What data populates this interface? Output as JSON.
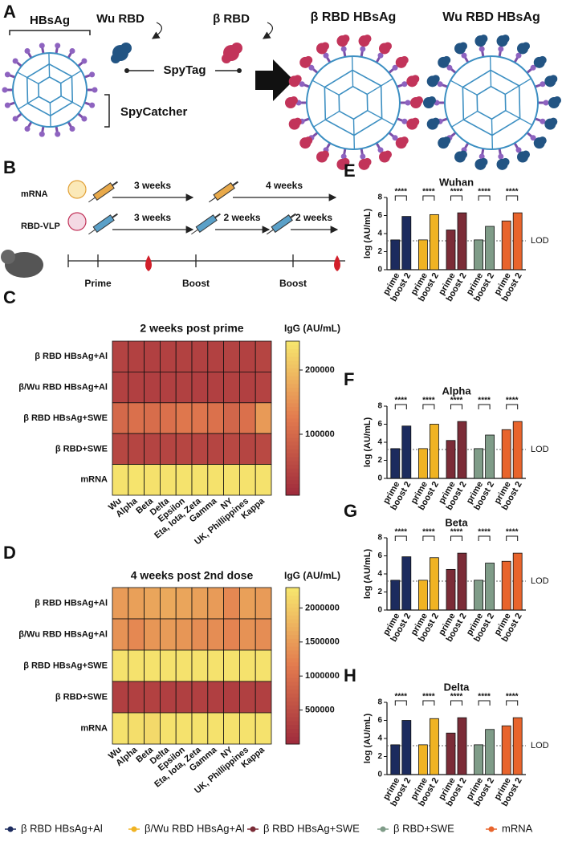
{
  "figure": {
    "panel_a": {
      "letter": "A",
      "labels": {
        "hbsag": "HBsAg",
        "wu_rbd": "Wu RBD",
        "beta_rbd": "β RBD",
        "spytag": "SpyTag",
        "spycatcher": "SpyCatcher",
        "beta_vlp": "β RBD HBsAg",
        "wu_vlp": "Wu RBD HBsAg"
      }
    },
    "panel_b": {
      "letter": "B",
      "rows": [
        {
          "label": "mRNA",
          "intervals": [
            "3 weeks",
            "4 weeks"
          ]
        },
        {
          "label": "RBD-VLP",
          "intervals": [
            "3 weeks",
            "2 weeks",
            "2 weeks"
          ]
        }
      ],
      "timepoints": [
        "Prime",
        "Boost",
        "Boost"
      ]
    }
  },
  "legend": [
    {
      "name": "β RBD HBsAg+Al",
      "color": "#1c2b5e"
    },
    {
      "name": "β/Wu RBD HBsAg+Al",
      "color": "#f0b323"
    },
    {
      "name": "β RBD HBsAg+SWE",
      "color": "#7b2c37"
    },
    {
      "name": "β RBD+SWE",
      "color": "#7f9c88"
    },
    {
      "name": "mRNA",
      "color": "#e8642c"
    }
  ],
  "chart_data": [
    {
      "type": "heatmap",
      "panel": "C",
      "title": "2 weeks post prime",
      "rows": [
        "β RBD HBsAg+Al",
        "β/Wu RBD HBsAg+Al",
        "β RBD HBsAg+SWE",
        "β RBD+SWE",
        "mRNA"
      ],
      "columns": [
        "Wu",
        "Alpha",
        "Beta",
        "Delta",
        "Epsilon",
        "Eta, Iota, Zeta",
        "Gamma",
        "NY",
        "UK, Phillippines",
        "Kappa"
      ],
      "values": [
        [
          42000,
          40000,
          38000,
          40000,
          41000,
          39000,
          40000,
          42000,
          40000,
          45000
        ],
        [
          40000,
          38000,
          36000,
          38000,
          39000,
          37000,
          38000,
          40000,
          38000,
          43000
        ],
        [
          100000,
          110000,
          105000,
          110000,
          120000,
          118000,
          112000,
          95000,
          110000,
          160000
        ],
        [
          48000,
          45000,
          44000,
          46000,
          47000,
          45000,
          45000,
          50000,
          46000,
          52000
        ],
        [
          240000,
          242000,
          238000,
          240000,
          241000,
          240000,
          239000,
          240000,
          240000,
          240000
        ]
      ],
      "colorbar_label": "IgG (AU/mL)",
      "clim": [
        5000,
        245000
      ],
      "cticks": [
        100000,
        200000
      ],
      "colormap": [
        "#9e2a3c",
        "#e27a4e",
        "#f6e76e"
      ]
    },
    {
      "type": "heatmap",
      "panel": "D",
      "title": "4 weeks post 2nd dose",
      "rows": [
        "β RBD HBsAg+Al",
        "β/Wu RBD HBsAg+Al",
        "β RBD HBsAg+SWE",
        "β RBD+SWE",
        "mRNA"
      ],
      "columns": [
        "Wu",
        "Alpha",
        "Beta",
        "Delta",
        "Epsilon",
        "Eta, Iota, Zeta",
        "Gamma",
        "NY",
        "UK, Phillippines",
        "Kappa"
      ],
      "values": [
        [
          1500000,
          1550000,
          1600000,
          1650000,
          1600000,
          1550000,
          1500000,
          1300000,
          1550000,
          1500000
        ],
        [
          1400000,
          1300000,
          1450000,
          1500000,
          1450000,
          1350000,
          1350000,
          1250000,
          1400000,
          1350000
        ],
        [
          2250000,
          2250000,
          2250000,
          2250000,
          2250000,
          2250000,
          2250000,
          2250000,
          2250000,
          2250000
        ],
        [
          300000,
          320000,
          330000,
          300000,
          310000,
          320000,
          300000,
          280000,
          310000,
          320000
        ],
        [
          2250000,
          2200000,
          2150000,
          2250000,
          2250000,
          2250000,
          2250000,
          2250000,
          2250000,
          2250000
        ]
      ],
      "colorbar_label": "IgG (AU/mL)",
      "clim": [
        0,
        2300000
      ],
      "cticks": [
        500000,
        1000000,
        1500000,
        2000000
      ],
      "colormap": [
        "#9e2a3c",
        "#e27a4e",
        "#f6e76e"
      ]
    },
    {
      "type": "bar",
      "panel": "E",
      "title": "Wuhan",
      "categories": [
        "prime",
        "boost 2"
      ],
      "series": [
        {
          "values": [
            3.3,
            5.9
          ]
        },
        {
          "values": [
            3.3,
            6.1
          ]
        },
        {
          "values": [
            4.4,
            6.3
          ]
        },
        {
          "values": [
            3.3,
            4.8
          ]
        },
        {
          "values": [
            5.4,
            6.3
          ]
        }
      ],
      "ylim": [
        0,
        8
      ],
      "yticks": [
        0,
        2,
        4,
        6,
        8
      ],
      "ylabel": "log (AU/mL)",
      "reference_line": {
        "value": 3.2,
        "label": "LOD"
      },
      "annotations": [
        "****",
        "****",
        "****",
        "****",
        "****"
      ]
    },
    {
      "type": "bar",
      "panel": "F",
      "title": "Alpha",
      "categories": [
        "prime",
        "boost 2"
      ],
      "series": [
        {
          "values": [
            3.3,
            5.8
          ]
        },
        {
          "values": [
            3.3,
            6.0
          ]
        },
        {
          "values": [
            4.2,
            6.3
          ]
        },
        {
          "values": [
            3.3,
            4.8
          ]
        },
        {
          "values": [
            5.4,
            6.3
          ]
        }
      ],
      "ylim": [
        0,
        8
      ],
      "yticks": [
        0,
        2,
        4,
        6,
        8
      ],
      "ylabel": "log (AU/mL)",
      "reference_line": {
        "value": 3.2,
        "label": "LOD"
      },
      "annotations": [
        "****",
        "****",
        "****",
        "****",
        "****"
      ]
    },
    {
      "type": "bar",
      "panel": "G",
      "title": "Beta",
      "categories": [
        "prime",
        "boost 2"
      ],
      "series": [
        {
          "values": [
            3.3,
            5.9
          ]
        },
        {
          "values": [
            3.3,
            5.8
          ]
        },
        {
          "values": [
            4.5,
            6.3
          ]
        },
        {
          "values": [
            3.3,
            5.2
          ]
        },
        {
          "values": [
            5.4,
            6.3
          ]
        }
      ],
      "ylim": [
        0,
        8
      ],
      "yticks": [
        0,
        2,
        4,
        6,
        8
      ],
      "ylabel": "log (AU/mL)",
      "reference_line": {
        "value": 3.2,
        "label": "LOD"
      },
      "annotations": [
        "****",
        "****",
        "****",
        "****",
        "****"
      ]
    },
    {
      "type": "bar",
      "panel": "H",
      "title": "Delta",
      "categories": [
        "prime",
        "boost 2"
      ],
      "series": [
        {
          "values": [
            3.3,
            6.0
          ]
        },
        {
          "values": [
            3.3,
            6.2
          ]
        },
        {
          "values": [
            4.6,
            6.3
          ]
        },
        {
          "values": [
            3.3,
            5.0
          ]
        },
        {
          "values": [
            5.4,
            6.3
          ]
        }
      ],
      "ylim": [
        0,
        8
      ],
      "yticks": [
        0,
        2,
        4,
        6,
        8
      ],
      "ylabel": "log (AU/mL)",
      "reference_line": {
        "value": 3.2,
        "label": "LOD"
      },
      "annotations": [
        "****",
        "****",
        "****",
        "****",
        "****"
      ]
    }
  ]
}
